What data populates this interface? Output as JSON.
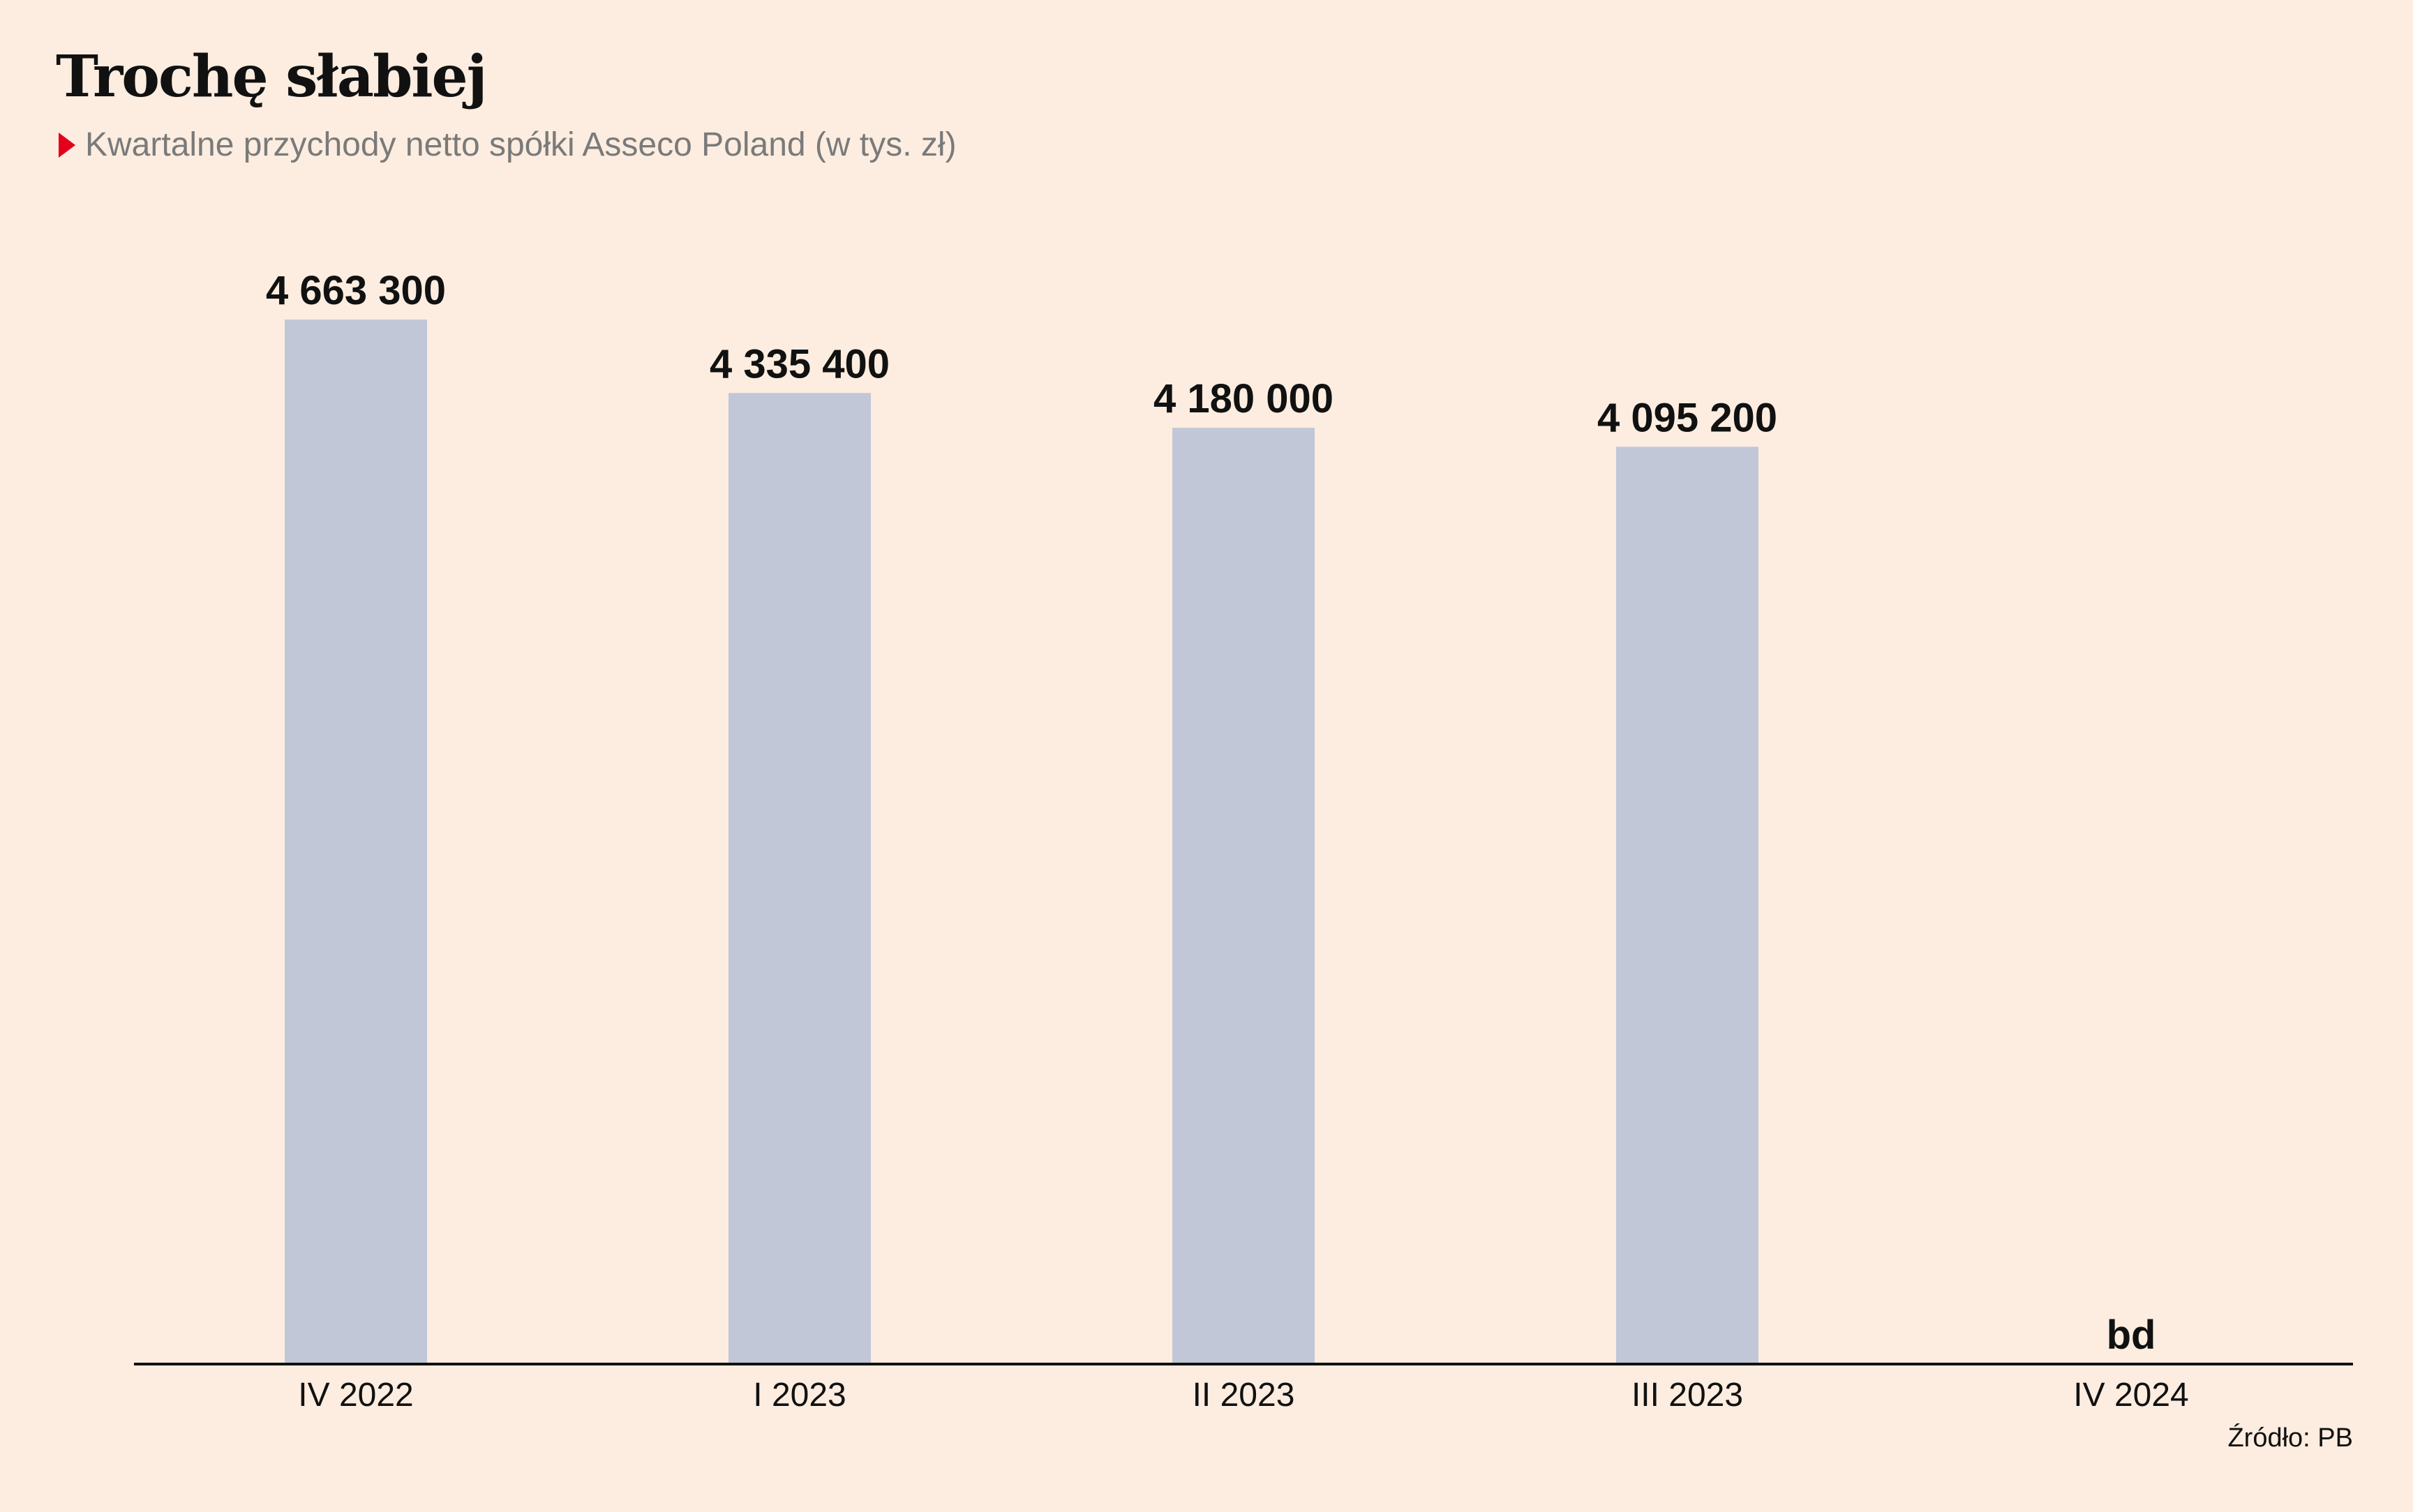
{
  "colors": {
    "background": "#fcede0",
    "bar": "#c1c7d7",
    "text": "#111111",
    "subtitle": "#7a7a7a",
    "marker": "#e3001b",
    "axis": "#111111"
  },
  "title": "Trochę słabiej",
  "subtitle": "Kwartalne przychody netto spółki Asseco Poland (w tys. zł)",
  "source": "Źródło: PB",
  "chart_data": {
    "type": "bar",
    "title": "Trochę słabiej",
    "subtitle": "Kwartalne przychody netto spółki Asseco Poland (w tys. zł)",
    "categories": [
      "IV 2022",
      "I 2023",
      "II 2023",
      "III 2023",
      "IV 2024"
    ],
    "values": [
      4663300,
      4335400,
      4180000,
      4095200,
      null
    ],
    "data_labels": [
      "4 663 300",
      "4 335 400",
      "4 180 000",
      "4 095 200",
      "bd"
    ],
    "xlabel": "",
    "ylabel": "",
    "ylim": [
      0,
      4663300
    ],
    "y_axis_shown": false,
    "grid": false,
    "legend": "none"
  }
}
